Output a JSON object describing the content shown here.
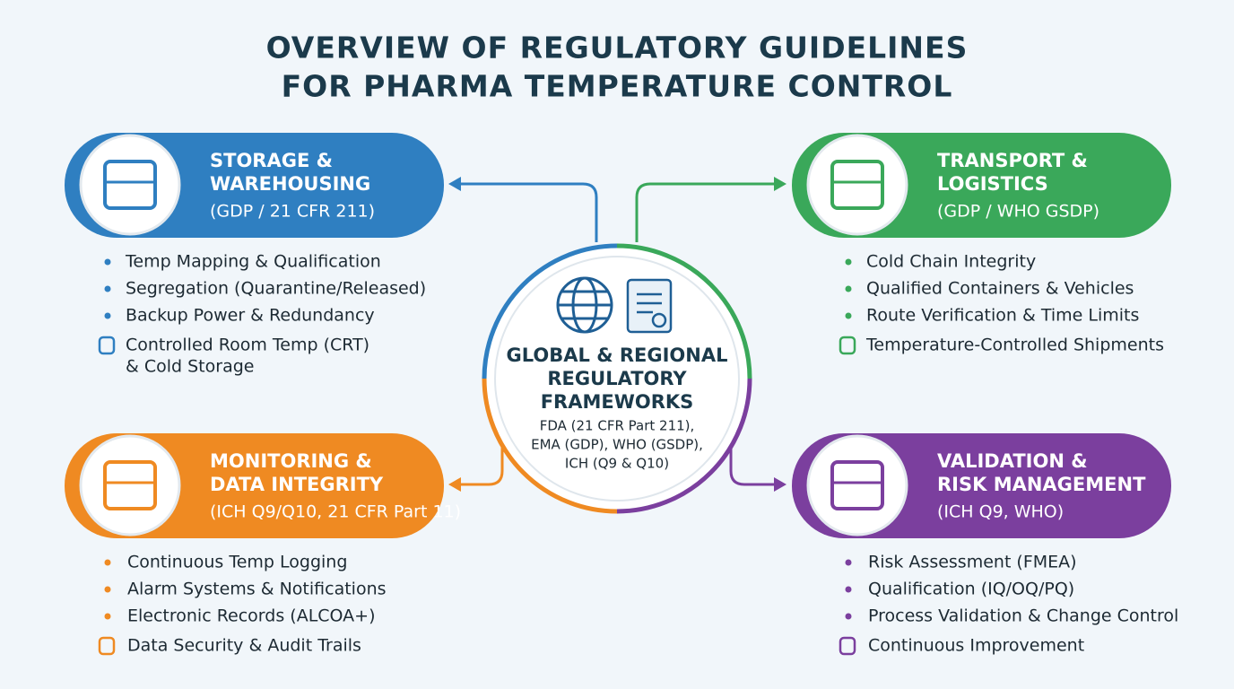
{
  "header": {
    "title_lines": [
      "OVERVIEW OF REGULATORY GUIDELINES",
      "FOR PHARMA TEMPERATURE CONTROL"
    ]
  },
  "center": {
    "title_lines": [
      "GLOBAL & REGIONAL",
      "REGULATORY",
      "FRAMEWORKS"
    ],
    "body_lines": [
      "FDA (21 CFR Part 211),",
      "EMA (GDP), WHO (GSDP),",
      "ICH (Q9 & Q10)"
    ]
  },
  "sections": [
    {
      "title_lines": [
        "STORAGE &",
        "WAREHOUSING"
      ],
      "subtitle": "(GDP / 21 CFR 211)",
      "items": [
        [
          "Temp Mapping & Qualification"
        ],
        [
          "Segregation (Quarantine/Released)"
        ],
        [
          "Backup Power & Redundancy"
        ],
        [
          "Controlled Room Temp (CRT)",
          "& Cold Storage"
        ]
      ]
    },
    {
      "title_lines": [
        "TRANSPORT &",
        "LOGISTICS"
      ],
      "subtitle": "(GDP / WHO GSDP)",
      "items": [
        [
          "Cold Chain Integrity"
        ],
        [
          "Qualified Containers & Vehicles"
        ],
        [
          "Route Verification & Time Limits"
        ],
        [
          "Temperature-Controlled Shipments"
        ]
      ]
    },
    {
      "title_lines": [
        "MONITORING &",
        "DATA INTEGRITY"
      ],
      "subtitle": "(ICH Q9/Q10, 21 CFR Part 11)",
      "items": [
        [
          "Continuous Temp Logging"
        ],
        [
          "Alarm Systems & Notifications"
        ],
        [
          "Electronic Records (ALCOA+)"
        ],
        [
          "Data Security & Audit Trails"
        ]
      ]
    },
    {
      "title_lines": [
        "VALIDATION &",
        "RISK MANAGEMENT"
      ],
      "subtitle": "(ICH Q9, WHO)",
      "items": [
        [
          "Risk Assessment (FMEA)"
        ],
        [
          "Qualification (IQ/OQ/PQ)"
        ],
        [
          "Process Validation & Change Control"
        ],
        [
          "Continuous Improvement"
        ]
      ]
    }
  ]
}
